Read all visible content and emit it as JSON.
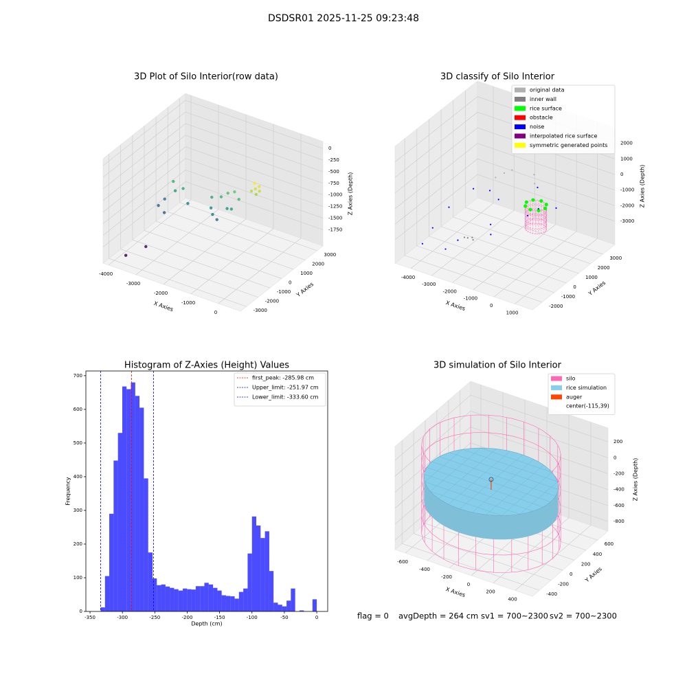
{
  "title": "DSDSR01 2025-11-25 09:23:48",
  "chart_data": [
    {
      "type": "scatter3d",
      "title": "3D Plot of Silo Interior(row data)",
      "xlabel": "X Axies",
      "ylabel": "Y Axies",
      "zlabel": "Z Axies (Depth)",
      "xlim": [
        -4200,
        800
      ],
      "ylim": [
        -3500,
        3500
      ],
      "zlim": [
        -2100,
        150
      ],
      "xticks": [
        -4000,
        -3000,
        -2000,
        -1000,
        0
      ],
      "yticks": [
        -3000,
        -2000,
        -1000,
        0,
        1000,
        2000,
        3000
      ],
      "zticks": [
        -1750,
        -1500,
        -1250,
        -1000,
        -750,
        -500,
        -250,
        0
      ],
      "colormap": "viridis",
      "x": [
        -800,
        -700,
        -900,
        -750,
        -850,
        -650,
        -1800,
        -2000,
        -1600,
        -2200,
        -2100,
        -1900,
        -1700,
        -1500,
        -2300,
        -1400,
        -3500,
        -3800,
        -3300,
        -3900,
        -3600,
        -3000,
        -3700,
        -3500,
        -3800
      ],
      "y": [
        1500,
        1600,
        1400,
        1450,
        1550,
        1500,
        1500,
        1400,
        1600,
        1000,
        900,
        800,
        1200,
        1100,
        1300,
        1500,
        1000,
        800,
        1200,
        500,
        300,
        900,
        1300,
        -1500,
        -2500
      ],
      "z": [
        -800,
        -750,
        -850,
        -900,
        -700,
        -820,
        -1100,
        -1200,
        -1050,
        -1400,
        -1500,
        -1550,
        -1350,
        -1300,
        -1250,
        -1150,
        -1300,
        -1500,
        -1250,
        -1600,
        -1650,
        -1450,
        -1200,
        -2000,
        -2050
      ]
    },
    {
      "type": "classify3d",
      "title": "3D classify of Silo Interior",
      "xlabel": "X Axies",
      "ylabel": "Y Axies",
      "zlabel": "Z Axies (Depth)",
      "xlim": [
        -4760,
        1840
      ],
      "ylim": [
        -2800,
        4000
      ],
      "zlim": [
        -4500,
        3000
      ],
      "xticks": [
        -4000,
        -3000,
        -2000,
        -1000,
        0,
        1000
      ],
      "yticks": [
        -2000,
        -1000,
        0,
        1000,
        2000,
        3000
      ],
      "zticks": [
        -3000,
        -2000,
        -1000,
        0,
        1000,
        2000
      ],
      "legend": "upper right",
      "cylinder": {
        "color": "#ff69b4",
        "center": [
          -500,
          1500
        ],
        "radius": 450,
        "z": [
          -3000,
          -1500
        ]
      },
      "series": [
        {
          "name": "original data",
          "color": "#b0b0b0",
          "x": [
            -2600,
            -2400,
            -2900,
            -1200,
            -1400
          ],
          "y": [
            2500,
            2800,
            2300,
            2600,
            2900
          ],
          "z": [
            -1000,
            -900,
            -1300,
            -1100,
            -800
          ]
        },
        {
          "name": "inner wall",
          "color": "#808080",
          "x": [
            -2200,
            -2100,
            -2300,
            -2000
          ],
          "y": [
            -1200,
            -1000,
            -1300,
            -1100
          ],
          "z": [
            -2700,
            -2750,
            -2650,
            -2800
          ]
        },
        {
          "name": "rice surface",
          "color": "#00ff00",
          "x": [
            -50,
            -182,
            -500,
            -818,
            -950,
            -818,
            -500,
            -182
          ],
          "y": [
            1500,
            1818,
            1950,
            1818,
            1500,
            1182,
            1050,
            1182
          ],
          "z": [
            -1500,
            -1500,
            -1500,
            -1500,
            -1500,
            -1500,
            -1500,
            -1500
          ]
        },
        {
          "name": "obstacle",
          "color": "#ff0000",
          "x": [],
          "y": [],
          "z": []
        },
        {
          "name": "noise",
          "color": "#0000ff",
          "x": [
            -4000,
            -3800,
            -3000,
            -2000,
            -1500,
            -2500,
            -1000,
            -3500,
            -2800,
            -4200,
            -1800,
            -200,
            300,
            -600
          ],
          "y": [
            -1000,
            0,
            2000,
            1000,
            -500,
            -1500,
            2500,
            1500,
            -2000,
            -1500,
            0,
            1200,
            1800,
            1000
          ],
          "z": [
            -3000,
            -2200,
            -2000,
            -1500,
            -2600,
            -2800,
            -1200,
            -1800,
            -3200,
            -3800,
            -2400,
            -1400,
            -1500,
            -1900
          ]
        },
        {
          "name": "interpolated rice surface",
          "color": "#800080",
          "x": [],
          "y": [],
          "z": []
        },
        {
          "name": "symmetric generated points",
          "color": "#ffff00",
          "x": [],
          "y": [],
          "z": []
        }
      ]
    },
    {
      "type": "histogram",
      "title": "Histogram of Z-Axies (Height) Values",
      "xlabel": "Depth (cm)",
      "ylabel": "Frequency",
      "bins": [
        -333.6,
        -326.9,
        -320.3,
        -313.6,
        -306.9,
        -300.2,
        -293.6,
        -286.9,
        -280.2,
        -273.6,
        -266.9,
        -260.2,
        -253.5,
        -246.9,
        -240.2,
        -233.5,
        -226.9,
        -220.2,
        -213.5,
        -206.8,
        -200.2,
        -193.5,
        -186.8,
        -180.1,
        -173.5,
        -166.8,
        -160.1,
        -153.4,
        -146.8,
        -140.1,
        -133.4,
        -126.7,
        -120.1,
        -113.4,
        -106.7,
        -100.0,
        -93.4,
        -86.7,
        -80.0,
        -73.3,
        -66.7,
        -60.0,
        -53.3,
        -46.6,
        -40.0,
        -33.3,
        -26.6,
        -19.9,
        -13.3,
        -6.6,
        0.0
      ],
      "counts": [
        12,
        105,
        290,
        448,
        530,
        668,
        660,
        680,
        640,
        605,
        395,
        175,
        98,
        78,
        80,
        74,
        70,
        66,
        62,
        68,
        66,
        65,
        75,
        75,
        85,
        80,
        70,
        62,
        48,
        46,
        45,
        38,
        58,
        68,
        172,
        282,
        255,
        218,
        238,
        120,
        26,
        20,
        15,
        32,
        68,
        0,
        3,
        0,
        0,
        36
      ],
      "color": "#0000ff",
      "xlim": [
        -356.4,
        16.9
      ],
      "ylim": [
        0,
        714
      ],
      "xticks": [
        -350,
        -300,
        -250,
        -200,
        -150,
        -100,
        -50,
        0
      ],
      "yticks": [
        0,
        100,
        200,
        300,
        400,
        500,
        600,
        700
      ],
      "legend": "upper right",
      "lines": [
        {
          "name": "first_peak: -285.98 cm",
          "value": -285.98,
          "color": "#ff0000"
        },
        {
          "name": "Upper_limit: -251.97 cm",
          "value": -251.97,
          "color": "#0000ff"
        },
        {
          "name": "Lower_limit: -333.60 cm",
          "value": -333.6,
          "color": "#0000ff"
        }
      ]
    },
    {
      "type": "simulation3d",
      "title": "3D simulation of Silo Interior",
      "xlabel": "X Axies",
      "ylabel": "Y Axies",
      "zlabel": "Z Axies (Depth)",
      "xlim": [
        -694,
        556
      ],
      "ylim": [
        -520,
        780
      ],
      "zlim": [
        -920,
        373
      ],
      "xticks": [
        -600,
        -400,
        -200,
        0,
        200,
        400
      ],
      "yticks": [
        -400,
        -200,
        0,
        200,
        400,
        600
      ],
      "zticks": [
        -800,
        -600,
        -400,
        -200,
        0,
        200
      ],
      "legend": "upper right",
      "silo": {
        "name": "silo",
        "color": "#ff69b4",
        "center": [
          -115,
          39
        ],
        "radius": 560,
        "z": [
          -850,
          250
        ]
      },
      "rice": {
        "name": "rice simulation",
        "color": "#87ceeb",
        "radius": 540,
        "z": [
          -450,
          -150
        ]
      },
      "auger": {
        "name": "auger",
        "color": "#ff4500",
        "x": [
          -115,
          -115
        ],
        "y": [
          39,
          39
        ],
        "z": [
          -250,
          -120
        ]
      },
      "center_label": "center(-115,39)"
    }
  ],
  "footer": [
    "flag = 0",
    "avgDepth = 264 cm",
    "sv1 = 700~2300",
    "sv2 = 700~2300"
  ]
}
